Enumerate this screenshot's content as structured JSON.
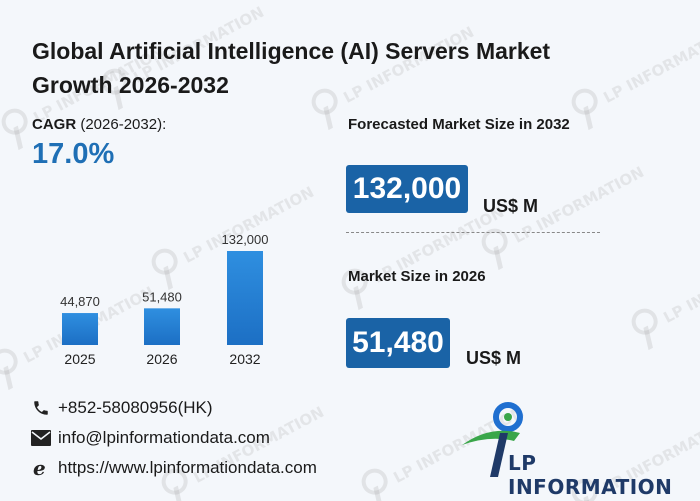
{
  "title": "Global Artificial Intelligence (AI) Servers Market Growth 2026-2032",
  "cagr": {
    "label_bold": "CAGR",
    "label_rest": " (2026-2032):",
    "value": "17.0%"
  },
  "forecast": {
    "label": "Forecasted Market Size in 2032",
    "value": "132,000",
    "unit": "US$ M"
  },
  "market_size": {
    "label": "Market Size in 2026",
    "value": "51,480",
    "unit": "US$ M"
  },
  "contacts": {
    "phone": "+852-58080956(HK)",
    "email": "info@lpinformationdata.com",
    "web": "https://www.lpinformationdata.com"
  },
  "brand": {
    "name": "LP INFORMATION",
    "watermark": "LP INFORMATION"
  },
  "colors": {
    "accent": "#1a63a6",
    "bar": "#2f8fe0",
    "brand_green": "#3aa64a"
  },
  "chart_data": {
    "type": "bar",
    "categories": [
      "2025",
      "2026",
      "2032"
    ],
    "values": [
      44870,
      51480,
      132000
    ],
    "value_labels": [
      "44,870",
      "51,480",
      "132,000"
    ],
    "ylim": [
      0,
      132000
    ],
    "grid": false,
    "legend": "none"
  }
}
